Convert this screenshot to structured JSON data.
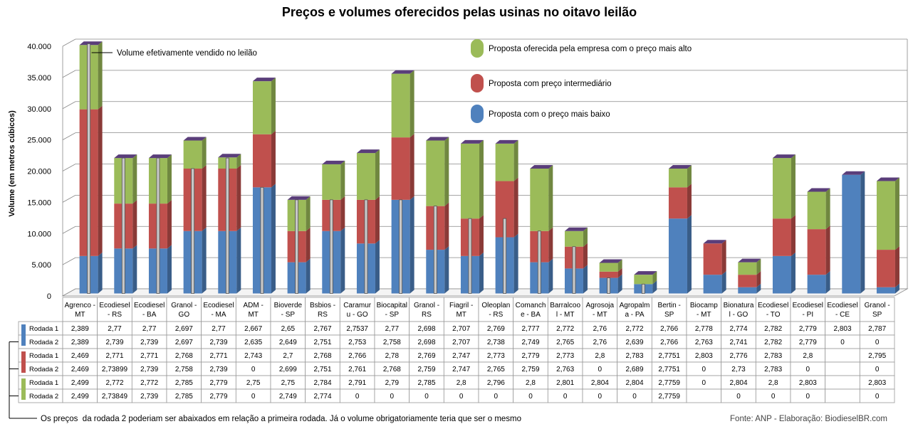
{
  "chart_data": {
    "type": "bar",
    "stacked": true,
    "title": "Preços e volumes oferecidos pelas usinas no oitavo leilão",
    "ylabel": "Volume (em metros cúbicos)",
    "ylim": [
      0,
      40000
    ],
    "y_ticks": [
      "0",
      "5.000",
      "10.000",
      "15.000",
      "20.000",
      "25.000",
      "30.000",
      "35.000",
      "40.000"
    ],
    "y_tick_values": [
      0,
      5000,
      10000,
      15000,
      20000,
      25000,
      30000,
      35000,
      40000
    ],
    "grid": true,
    "categories": [
      [
        "Agrenco -",
        "MT"
      ],
      [
        "Ecodiesel",
        "- RS"
      ],
      [
        "Ecodiesel",
        "- BA"
      ],
      [
        "Granol -",
        "GO"
      ],
      [
        "Ecodiesel",
        "- MA"
      ],
      [
        "ADM -",
        "MT"
      ],
      [
        "Bioverde",
        "- SP"
      ],
      [
        "Bsbios -",
        "RS"
      ],
      [
        "Caramur",
        "u - GO"
      ],
      [
        "Biocapital",
        "- SP"
      ],
      [
        "Granol -",
        "RS"
      ],
      [
        "Fiagril -",
        "MT"
      ],
      [
        "Oleoplan",
        "- RS"
      ],
      [
        "Comanch",
        "e - BA"
      ],
      [
        "Barralcoo",
        "l - MT"
      ],
      [
        "Agrosoja",
        "- MT"
      ],
      [
        "Agropalm",
        "a - PA"
      ],
      [
        "Bertin -",
        "SP"
      ],
      [
        "Biocamp",
        "- MT"
      ],
      [
        "Bionatura",
        "l - GO"
      ],
      [
        "Ecodiesel",
        "- TO"
      ],
      [
        "Ecodiesel",
        "- PI"
      ],
      [
        "Ecodiesel",
        "- CE"
      ],
      [
        "Granol -",
        "SP"
      ]
    ],
    "series": [
      {
        "name": "Proposta com o preço mais baixo",
        "color": "#4f81bd",
        "values": [
          6000,
          7200,
          7200,
          10000,
          10000,
          17000,
          5000,
          10000,
          8000,
          15000,
          7000,
          6000,
          9000,
          5000,
          4000,
          2500,
          1500,
          12000,
          3000,
          1000,
          6000,
          3000,
          19000,
          1000
        ]
      },
      {
        "name": "Proposta com preço intermediário",
        "color": "#c0504d",
        "values": [
          23500,
          7200,
          7200,
          10000,
          10000,
          8500,
          5000,
          5000,
          7000,
          10000,
          7000,
          6000,
          9000,
          5000,
          3500,
          1000,
          0,
          5000,
          5000,
          2000,
          6000,
          7300,
          0,
          6000
        ]
      },
      {
        "name": "Proposta oferecida pela empresa com o preço mais alto",
        "color": "#9bbb59",
        "values": [
          10300,
          7300,
          7300,
          4500,
          1800,
          8500,
          5000,
          5700,
          7500,
          10200,
          10500,
          12000,
          6000,
          10000,
          2500,
          1400,
          1500,
          3000,
          0,
          2000,
          9700,
          6000,
          0,
          11000
        ]
      }
    ],
    "sold_volume": [
      40000,
      21700,
      21700,
      20000,
      21700,
      17000,
      15000,
      15000,
      15000,
      15000,
      14000,
      12000,
      12000,
      10000,
      7500,
      2500,
      1500,
      null,
      null,
      null,
      null,
      null,
      null,
      null
    ],
    "annotation_sold": "Volume efetivamente vendido no leilão",
    "table_rows": [
      {
        "group": 0,
        "label": "Rodada 1",
        "values": [
          "2,389",
          "2,77",
          "2,77",
          "2,697",
          "2,77",
          "2,667",
          "2,65",
          "2,767",
          "2,7537",
          "2,77",
          "2,698",
          "2,707",
          "2,769",
          "2,777",
          "2,772",
          "2,76",
          "2,772",
          "2,766",
          "2,778",
          "2,774",
          "2,782",
          "2,779",
          "2,803",
          "2,787"
        ]
      },
      {
        "group": 0,
        "label": "Rodada 2",
        "values": [
          "2,389",
          "2,739",
          "2,739",
          "2,697",
          "2,739",
          "2,635",
          "2,649",
          "2,751",
          "2,753",
          "2,758",
          "2,698",
          "2,707",
          "2,738",
          "2,749",
          "2,765",
          "2,76",
          "2,639",
          "2,766",
          "2,763",
          "2,741",
          "2,782",
          "2,779",
          "0",
          "0"
        ]
      },
      {
        "group": 1,
        "label": "Rodada 1",
        "values": [
          "2,469",
          "2,771",
          "2,771",
          "2,768",
          "2,771",
          "2,743",
          "2,7",
          "2,768",
          "2,766",
          "2,78",
          "2,769",
          "2,747",
          "2,773",
          "2,779",
          "2,773",
          "2,8",
          "2,783",
          "2,7751",
          "2,803",
          "2,776",
          "2,783",
          "2,8",
          "",
          "2,795"
        ]
      },
      {
        "group": 1,
        "label": "Rodada 2",
        "values": [
          "2,469",
          "2,73899",
          "2,739",
          "2,758",
          "2,739",
          "0",
          "2,699",
          "2,751",
          "2,761",
          "2,768",
          "2,759",
          "2,747",
          "2,765",
          "2,759",
          "2,763",
          "0",
          "2,689",
          "2,7751",
          "0",
          "2,73",
          "2,783",
          "0",
          "",
          "0"
        ]
      },
      {
        "group": 2,
        "label": "Rodada 1",
        "values": [
          "2,499",
          "2,772",
          "2,772",
          "2,785",
          "2,779",
          "2,75",
          "2,75",
          "2,784",
          "2,791",
          "2,79",
          "2,785",
          "2,8",
          "2,796",
          "2,8",
          "2,801",
          "2,804",
          "2,804",
          "2,7759",
          "0",
          "2,804",
          "2,8",
          "2,803",
          "",
          "2,803"
        ]
      },
      {
        "group": 2,
        "label": "Rodada 2",
        "values": [
          "2,499",
          "2,73849",
          "2,739",
          "2,785",
          "2,779",
          "0",
          "2,749",
          "2,774",
          "0",
          "0",
          "0",
          "0",
          "0",
          "0",
          "0",
          "0",
          "0",
          "2,7759",
          "",
          "0",
          "0",
          "0",
          "",
          "0"
        ]
      }
    ],
    "footnote": "Os preços  da rodada 2 poderiam ser abaixados em relação a primeira rodada. Já o volume obrigatoriamente teria que ser o mesmo",
    "source": "Fonte: ANP - Elaboração: BiodieselBR.com"
  }
}
